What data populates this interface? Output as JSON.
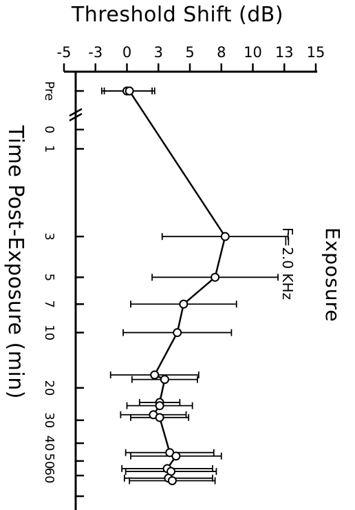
{
  "chart_data": {
    "type": "line",
    "title": "Threshold Shift (dB)",
    "xlabel": "Threshold Shift (dB)",
    "ylabel": "Time Post-Exposure (min)",
    "annotations": [
      "Exposure",
      "F=2.0 KHz"
    ],
    "x_ticks": [
      "-5",
      "-3",
      "0",
      "3",
      "5",
      "8",
      "10",
      "13",
      "15"
    ],
    "x_tick_values": [
      -5,
      -2.5,
      0,
      2.5,
      5,
      7.5,
      10,
      12.5,
      15
    ],
    "xlim": [
      -5,
      15
    ],
    "y_ticks": [
      "Pre",
      "0",
      "1",
      "3",
      "5",
      "7",
      "10",
      "20",
      "30",
      "40",
      "50",
      "60"
    ],
    "y_scale": "log, axis break between Pre and 0",
    "grid": false,
    "series": [
      {
        "points": [
          {
            "t": "Pre",
            "y": 0.0,
            "err": 2.0
          },
          {
            "t": "Pre",
            "y": 0.2,
            "err": 2.0
          },
          {
            "t": 3,
            "y": 7.8,
            "err": 5.0
          },
          {
            "t": 5,
            "y": 7.0,
            "err": 5.0
          },
          {
            "t": 7,
            "y": 4.5,
            "err": 4.2
          },
          {
            "t": 10,
            "y": 4.0,
            "err": 4.3
          },
          {
            "t": 17,
            "y": 2.2,
            "err": 3.5
          },
          {
            "t": 18,
            "y": 3.0,
            "err": 2.6
          },
          {
            "t": 24,
            "y": 2.6,
            "err": 1.6
          },
          {
            "t": 25,
            "y": 2.6,
            "err": 2.6
          },
          {
            "t": 28,
            "y": 2.1,
            "err": 2.6
          },
          {
            "t": 29,
            "y": 2.6,
            "err": 2.3
          },
          {
            "t": 45,
            "y": 3.4,
            "err": 3.5
          },
          {
            "t": 47,
            "y": 3.9,
            "err": 3.6
          },
          {
            "t": 55,
            "y": 3.2,
            "err": 3.6
          },
          {
            "t": 57,
            "y": 3.5,
            "err": 3.6
          },
          {
            "t": 62,
            "y": 3.3,
            "err": 3.5
          },
          {
            "t": 64,
            "y": 3.6,
            "err": 3.4
          }
        ]
      }
    ]
  }
}
